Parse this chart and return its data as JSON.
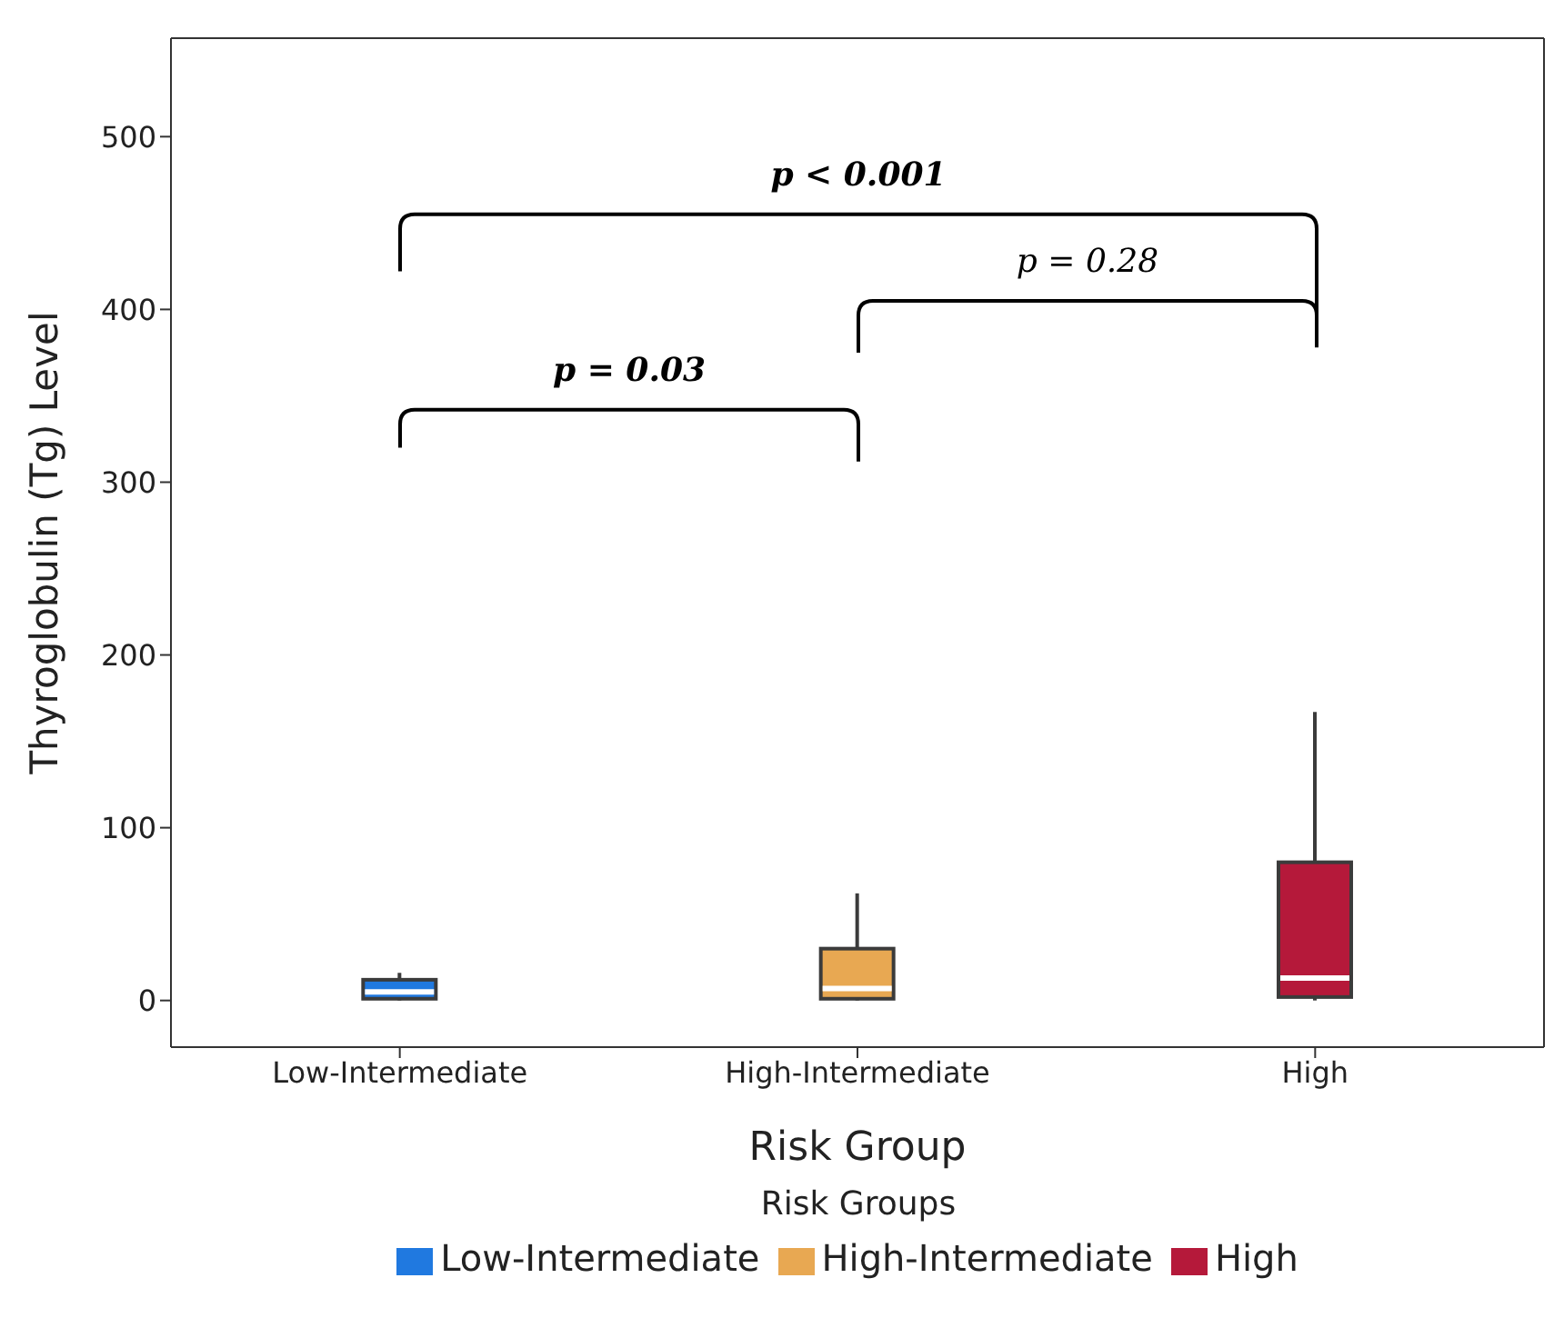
{
  "chart_data": {
    "type": "box",
    "xlabel": "Risk Group",
    "ylabel": "Thyroglobulin (Tg) Level",
    "legend_title": "Risk Groups",
    "categories": [
      "Low-Intermediate",
      "High-Intermediate",
      "High"
    ],
    "series": [
      {
        "name": "Low-Intermediate",
        "color": "#2079e0",
        "boxes": [
          {
            "low": 0,
            "q1": 1,
            "median": 5,
            "q3": 12,
            "high": 16
          },
          null,
          null
        ]
      },
      {
        "name": "High-Intermediate",
        "color": "#e8a852",
        "boxes": [
          null,
          {
            "low": 0,
            "q1": 1,
            "median": 7,
            "q3": 30,
            "high": 62
          },
          null
        ]
      },
      {
        "name": "High",
        "color": "#b5193a",
        "boxes": [
          null,
          null,
          {
            "low": 0,
            "q1": 2,
            "median": 13,
            "q3": 80,
            "high": 167
          }
        ]
      }
    ],
    "ylim": [
      -27,
      557
    ],
    "yticks": [
      0,
      100,
      200,
      300,
      400,
      500
    ],
    "annotations": [
      "p < 0.001",
      "p = 0.28",
      "p = 0.03"
    ],
    "legend": "bottom",
    "grid": false
  }
}
